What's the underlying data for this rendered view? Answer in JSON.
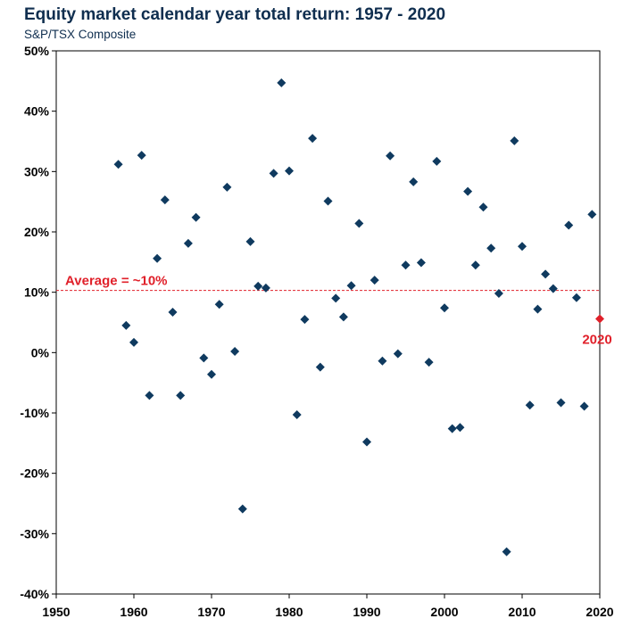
{
  "chart_data": {
    "type": "scatter",
    "title": "Equity market calendar year total return: 1957 - 2020",
    "subtitle": "S&P/TSX Composite",
    "xlabel": "",
    "ylabel": "",
    "xlim": [
      1950,
      2020
    ],
    "ylim": [
      -40,
      50
    ],
    "xticks": [
      1950,
      1960,
      1970,
      1980,
      1990,
      2000,
      2010,
      2020
    ],
    "yticks": [
      -40,
      -30,
      -20,
      -10,
      0,
      10,
      20,
      30,
      40,
      50
    ],
    "ytick_labels": [
      "-40%",
      "-30%",
      "-20%",
      "-10%",
      "0%",
      "10%",
      "20%",
      "30%",
      "40%",
      "50%"
    ],
    "grid": false,
    "colors": {
      "points": "#0f3a5f",
      "highlight": "#e0202a",
      "average": "#e0202a"
    },
    "average": {
      "value": 10.3,
      "label": "Average = ~10%"
    },
    "highlight": {
      "x": 2020,
      "y": 5.6,
      "label": "2020"
    },
    "points": [
      {
        "x": 1958,
        "y": 31.2
      },
      {
        "x": 1959,
        "y": 4.5
      },
      {
        "x": 1960,
        "y": 1.7
      },
      {
        "x": 1961,
        "y": 32.7
      },
      {
        "x": 1962,
        "y": -7.1
      },
      {
        "x": 1963,
        "y": 15.6
      },
      {
        "x": 1964,
        "y": 25.3
      },
      {
        "x": 1965,
        "y": 6.7
      },
      {
        "x": 1966,
        "y": -7.1
      },
      {
        "x": 1967,
        "y": 18.1
      },
      {
        "x": 1968,
        "y": 22.4
      },
      {
        "x": 1969,
        "y": -0.9
      },
      {
        "x": 1970,
        "y": -3.6
      },
      {
        "x": 1971,
        "y": 8.0
      },
      {
        "x": 1972,
        "y": 27.4
      },
      {
        "x": 1973,
        "y": 0.2
      },
      {
        "x": 1974,
        "y": -25.9
      },
      {
        "x": 1975,
        "y": 18.4
      },
      {
        "x": 1976,
        "y": 11.0
      },
      {
        "x": 1977,
        "y": 10.7
      },
      {
        "x": 1978,
        "y": 29.7
      },
      {
        "x": 1979,
        "y": 44.7
      },
      {
        "x": 1980,
        "y": 30.1
      },
      {
        "x": 1981,
        "y": -10.3
      },
      {
        "x": 1982,
        "y": 5.5
      },
      {
        "x": 1983,
        "y": 35.5
      },
      {
        "x": 1984,
        "y": -2.4
      },
      {
        "x": 1985,
        "y": 25.1
      },
      {
        "x": 1986,
        "y": 9.0
      },
      {
        "x": 1987,
        "y": 5.9
      },
      {
        "x": 1988,
        "y": 11.1
      },
      {
        "x": 1989,
        "y": 21.4
      },
      {
        "x": 1990,
        "y": -14.8
      },
      {
        "x": 1991,
        "y": 12.0
      },
      {
        "x": 1992,
        "y": -1.4
      },
      {
        "x": 1993,
        "y": 32.6
      },
      {
        "x": 1994,
        "y": -0.2
      },
      {
        "x": 1995,
        "y": 14.5
      },
      {
        "x": 1996,
        "y": 28.3
      },
      {
        "x": 1997,
        "y": 14.9
      },
      {
        "x": 1998,
        "y": -1.6
      },
      {
        "x": 1999,
        "y": 31.7
      },
      {
        "x": 2000,
        "y": 7.4
      },
      {
        "x": 2001,
        "y": -12.6
      },
      {
        "x": 2002,
        "y": -12.4
      },
      {
        "x": 2003,
        "y": 26.7
      },
      {
        "x": 2004,
        "y": 14.5
      },
      {
        "x": 2005,
        "y": 24.1
      },
      {
        "x": 2006,
        "y": 17.3
      },
      {
        "x": 2007,
        "y": 9.8
      },
      {
        "x": 2008,
        "y": -33.0
      },
      {
        "x": 2009,
        "y": 35.1
      },
      {
        "x": 2010,
        "y": 17.6
      },
      {
        "x": 2011,
        "y": -8.7
      },
      {
        "x": 2012,
        "y": 7.2
      },
      {
        "x": 2013,
        "y": 13.0
      },
      {
        "x": 2014,
        "y": 10.6
      },
      {
        "x": 2015,
        "y": -8.3
      },
      {
        "x": 2016,
        "y": 21.1
      },
      {
        "x": 2017,
        "y": 9.1
      },
      {
        "x": 2018,
        "y": -8.9
      },
      {
        "x": 2019,
        "y": 22.9
      }
    ]
  }
}
